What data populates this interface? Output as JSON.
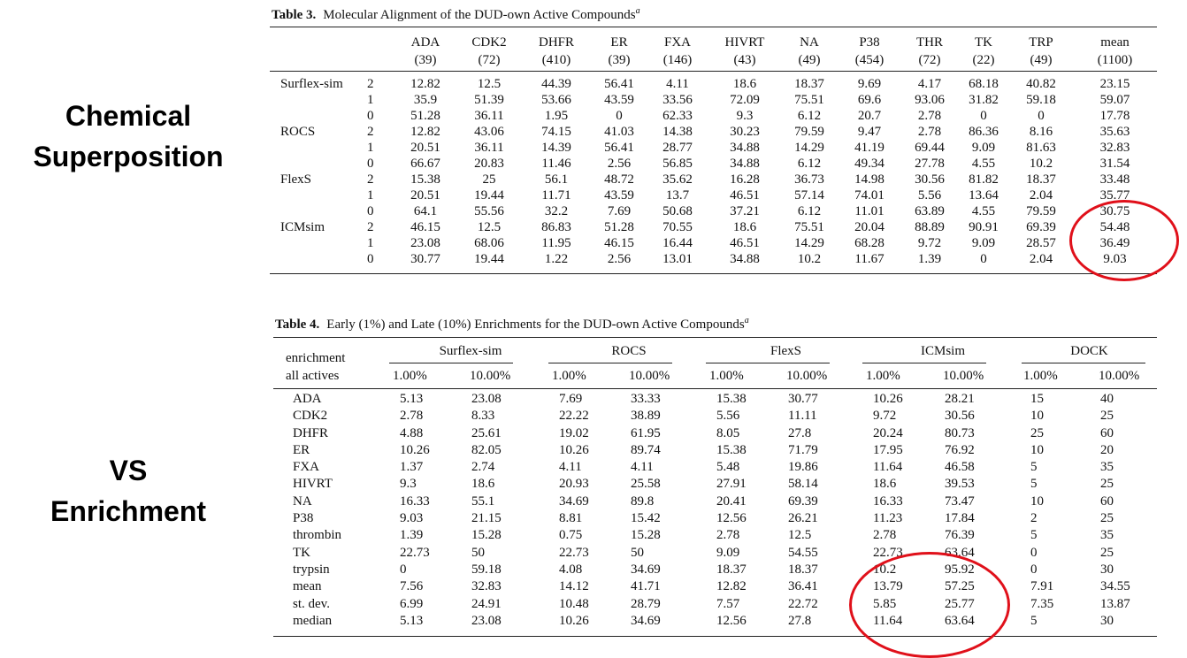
{
  "side_labels": {
    "top": [
      "Chemical",
      "Superposition"
    ],
    "bottom": [
      "VS",
      "Enrichment"
    ]
  },
  "table3": {
    "label": "Table 3.",
    "title": "Molecular Alignment of the DUD-own Active Compounds",
    "footnote_mark": "a",
    "targets": [
      {
        "name": "ADA",
        "count": "(39)"
      },
      {
        "name": "CDK2",
        "count": "(72)"
      },
      {
        "name": "DHFR",
        "count": "(410)"
      },
      {
        "name": "ER",
        "count": "(39)"
      },
      {
        "name": "FXA",
        "count": "(146)"
      },
      {
        "name": "HIVRT",
        "count": "(43)"
      },
      {
        "name": "NA",
        "count": "(49)"
      },
      {
        "name": "P38",
        "count": "(454)"
      },
      {
        "name": "THR",
        "count": "(72)"
      },
      {
        "name": "TK",
        "count": "(22)"
      },
      {
        "name": "TRP",
        "count": "(49)"
      },
      {
        "name": "mean",
        "count": "(1100)"
      }
    ],
    "rows": [
      {
        "method": "Surflex-sim",
        "level": "2",
        "values": [
          "12.82",
          "12.5",
          "44.39",
          "56.41",
          "4.11",
          "18.6",
          "18.37",
          "9.69",
          "4.17",
          "68.18",
          "40.82",
          "23.15"
        ]
      },
      {
        "method": "",
        "level": "1",
        "values": [
          "35.9",
          "51.39",
          "53.66",
          "43.59",
          "33.56",
          "72.09",
          "75.51",
          "69.6",
          "93.06",
          "31.82",
          "59.18",
          "59.07"
        ]
      },
      {
        "method": "",
        "level": "0",
        "values": [
          "51.28",
          "36.11",
          "1.95",
          "0",
          "62.33",
          "9.3",
          "6.12",
          "20.7",
          "2.78",
          "0",
          "0",
          "17.78"
        ]
      },
      {
        "method": "ROCS",
        "level": "2",
        "values": [
          "12.82",
          "43.06",
          "74.15",
          "41.03",
          "14.38",
          "30.23",
          "79.59",
          "9.47",
          "2.78",
          "86.36",
          "8.16",
          "35.63"
        ]
      },
      {
        "method": "",
        "level": "1",
        "values": [
          "20.51",
          "36.11",
          "14.39",
          "56.41",
          "28.77",
          "34.88",
          "14.29",
          "41.19",
          "69.44",
          "9.09",
          "81.63",
          "32.83"
        ]
      },
      {
        "method": "",
        "level": "0",
        "values": [
          "66.67",
          "20.83",
          "11.46",
          "2.56",
          "56.85",
          "34.88",
          "6.12",
          "49.34",
          "27.78",
          "4.55",
          "10.2",
          "31.54"
        ]
      },
      {
        "method": "FlexS",
        "level": "2",
        "values": [
          "15.38",
          "25",
          "56.1",
          "48.72",
          "35.62",
          "16.28",
          "36.73",
          "14.98",
          "30.56",
          "81.82",
          "18.37",
          "33.48"
        ]
      },
      {
        "method": "",
        "level": "1",
        "values": [
          "20.51",
          "19.44",
          "11.71",
          "43.59",
          "13.7",
          "46.51",
          "57.14",
          "74.01",
          "5.56",
          "13.64",
          "2.04",
          "35.77"
        ]
      },
      {
        "method": "",
        "level": "0",
        "values": [
          "64.1",
          "55.56",
          "32.2",
          "7.69",
          "50.68",
          "37.21",
          "6.12",
          "11.01",
          "63.89",
          "4.55",
          "79.59",
          "30.75"
        ]
      },
      {
        "method": "ICMsim",
        "level": "2",
        "values": [
          "46.15",
          "12.5",
          "86.83",
          "51.28",
          "70.55",
          "18.6",
          "75.51",
          "20.04",
          "88.89",
          "90.91",
          "69.39",
          "54.48"
        ]
      },
      {
        "method": "",
        "level": "1",
        "values": [
          "23.08",
          "68.06",
          "11.95",
          "46.15",
          "16.44",
          "46.51",
          "14.29",
          "68.28",
          "9.72",
          "9.09",
          "28.57",
          "36.49"
        ]
      },
      {
        "method": "",
        "level": "0",
        "values": [
          "30.77",
          "19.44",
          "1.22",
          "2.56",
          "13.01",
          "34.88",
          "10.2",
          "11.67",
          "1.39",
          "0",
          "2.04",
          "9.03"
        ]
      }
    ]
  },
  "table4": {
    "label": "Table 4.",
    "title": "Early (1%) and Late (10%) Enrichments for the DUD-own Active Compounds",
    "footnote_mark": "a",
    "corner": [
      "enrichment",
      "all actives"
    ],
    "methods": [
      "Surflex-sim",
      "ROCS",
      "FlexS",
      "ICMsim",
      "DOCK"
    ],
    "subheaders": [
      "1.00%",
      "10.00%"
    ],
    "rows": [
      {
        "target": "ADA",
        "values": [
          "5.13",
          "23.08",
          "7.69",
          "33.33",
          "15.38",
          "30.77",
          "10.26",
          "28.21",
          "15",
          "40"
        ]
      },
      {
        "target": "CDK2",
        "values": [
          "2.78",
          "8.33",
          "22.22",
          "38.89",
          "5.56",
          "11.11",
          "9.72",
          "30.56",
          "10",
          "25"
        ]
      },
      {
        "target": "DHFR",
        "values": [
          "4.88",
          "25.61",
          "19.02",
          "61.95",
          "8.05",
          "27.8",
          "20.24",
          "80.73",
          "25",
          "60"
        ]
      },
      {
        "target": "ER",
        "values": [
          "10.26",
          "82.05",
          "10.26",
          "89.74",
          "15.38",
          "71.79",
          "17.95",
          "76.92",
          "10",
          "20"
        ]
      },
      {
        "target": "FXA",
        "values": [
          "1.37",
          "2.74",
          "4.11",
          "4.11",
          "5.48",
          "19.86",
          "11.64",
          "46.58",
          "5",
          "35"
        ]
      },
      {
        "target": "HIVRT",
        "values": [
          "9.3",
          "18.6",
          "20.93",
          "25.58",
          "27.91",
          "58.14",
          "18.6",
          "39.53",
          "5",
          "25"
        ]
      },
      {
        "target": "NA",
        "values": [
          "16.33",
          "55.1",
          "34.69",
          "89.8",
          "20.41",
          "69.39",
          "16.33",
          "73.47",
          "10",
          "60"
        ]
      },
      {
        "target": "P38",
        "values": [
          "9.03",
          "21.15",
          "8.81",
          "15.42",
          "12.56",
          "26.21",
          "11.23",
          "17.84",
          "2",
          "25"
        ]
      },
      {
        "target": "thrombin",
        "values": [
          "1.39",
          "15.28",
          "0.75",
          "15.28",
          "2.78",
          "12.5",
          "2.78",
          "76.39",
          "5",
          "35"
        ]
      },
      {
        "target": "TK",
        "values": [
          "22.73",
          "50",
          "22.73",
          "50",
          "9.09",
          "54.55",
          "22.73",
          "63.64",
          "0",
          "25"
        ]
      },
      {
        "target": "trypsin",
        "values": [
          "0",
          "59.18",
          "4.08",
          "34.69",
          "18.37",
          "18.37",
          "10.2",
          "95.92",
          "0",
          "30"
        ]
      },
      {
        "target": "mean",
        "values": [
          "7.56",
          "32.83",
          "14.12",
          "41.71",
          "12.82",
          "36.41",
          "13.79",
          "57.25",
          "7.91",
          "34.55"
        ]
      },
      {
        "target": "st. dev.",
        "values": [
          "6.99",
          "24.91",
          "10.48",
          "28.79",
          "7.57",
          "22.72",
          "5.85",
          "25.77",
          "7.35",
          "13.87"
        ]
      },
      {
        "target": "median",
        "values": [
          "5.13",
          "23.08",
          "10.26",
          "34.69",
          "12.56",
          "27.8",
          "11.64",
          "63.64",
          "5",
          "30"
        ]
      }
    ]
  },
  "highlight_color": "#e0101a"
}
